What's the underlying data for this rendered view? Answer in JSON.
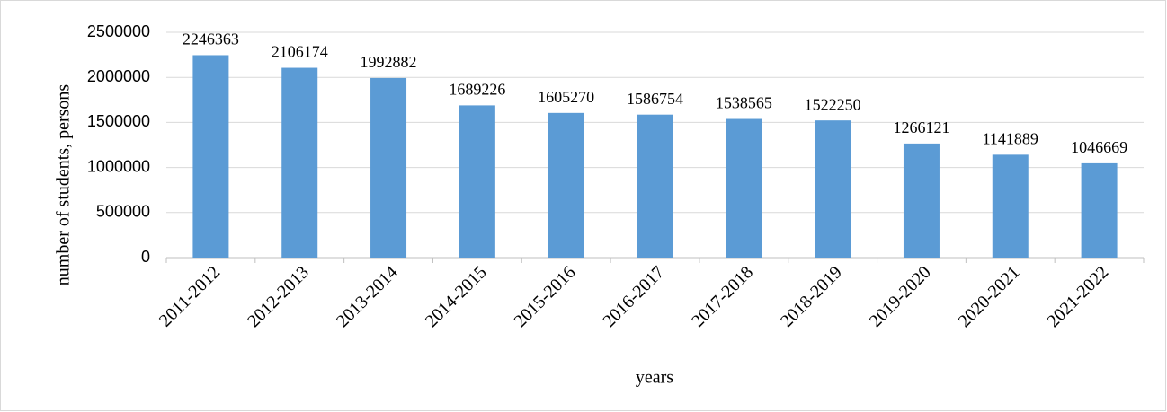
{
  "chart_data": {
    "type": "bar",
    "xlabel": "years",
    "ylabel": "number of students, persons",
    "categories": [
      "2011-2012",
      "2012-2013",
      "2013-2014",
      "2014-2015",
      "2015-2016",
      "2016-2017",
      "2017-2018",
      "2018-2019",
      "2019-2020",
      "2020-2021",
      "2021-2022"
    ],
    "values": [
      2246363,
      2106174,
      1992882,
      1689226,
      1605270,
      1586754,
      1538565,
      1522250,
      1266121,
      1141889,
      1046669
    ],
    "color": "#5b9bd5",
    "ylim": [
      0,
      2500000
    ],
    "yticks": [
      0,
      500000,
      1000000,
      1500000,
      2000000,
      2500000
    ],
    "grid": true
  }
}
